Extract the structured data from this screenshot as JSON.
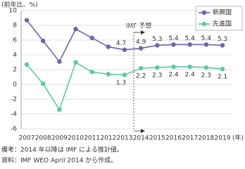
{
  "chart_data": {
    "type": "line",
    "y_axis_label": "(前年比、%)",
    "x_axis_label": "(年)",
    "x": [
      2007,
      2008,
      2009,
      2010,
      2011,
      2012,
      2013,
      2014,
      2015,
      2016,
      2017,
      2018,
      2019
    ],
    "xlim": [
      2007,
      2019
    ],
    "series": [
      {
        "name": "新興国",
        "color": "#6e64a8",
        "values": [
          8.7,
          5.9,
          3.1,
          7.5,
          6.3,
          5.1,
          4.7,
          4.9,
          5.3,
          5.4,
          5.4,
          5.4,
          5.3
        ],
        "value_labels": [
          null,
          null,
          null,
          null,
          null,
          null,
          "4.7",
          "4.9",
          "5.3",
          "5.4",
          "5.4",
          "5.4",
          "5.3"
        ]
      },
      {
        "name": "先進国",
        "color": "#5ec8a6",
        "values": [
          2.7,
          0.1,
          -3.4,
          3.0,
          1.7,
          1.4,
          1.3,
          2.2,
          2.3,
          2.4,
          2.4,
          2.3,
          2.1
        ],
        "value_labels": [
          null,
          null,
          null,
          null,
          null,
          null,
          "1.3",
          "2.2",
          "2.3",
          "2.4",
          "2.4",
          "2.3",
          "2.1"
        ]
      }
    ],
    "ylim": [
      -6,
      10
    ],
    "yticks": [
      -6,
      -4,
      -2,
      0,
      2,
      4,
      6,
      8,
      10
    ],
    "grid": true,
    "legend": "top-right",
    "annotation": "IMF 予想",
    "notes": [
      "備考：2014 年以降は IMF による推計値。",
      "資料：IMF WEO April 2014 から作成。"
    ]
  }
}
